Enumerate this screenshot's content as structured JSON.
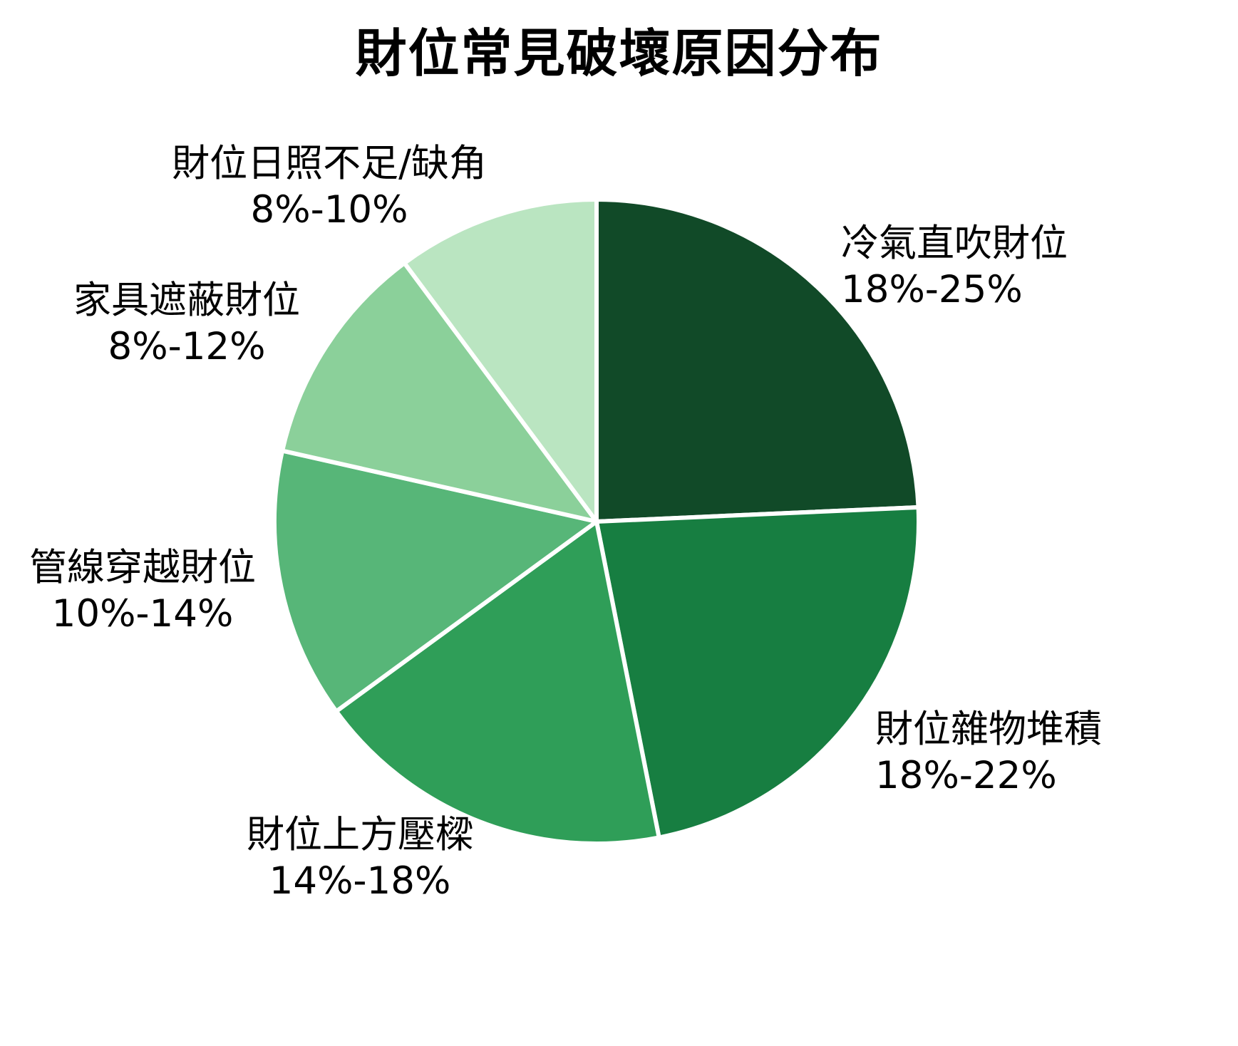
{
  "title": "財位常見破壞原因分布",
  "chart_data": {
    "type": "pie",
    "title": "財位常見破壞原因分布",
    "start_angle_deg": -90,
    "direction": "clockwise",
    "stroke_color": "#ffffff",
    "legend_position": "outside-labels",
    "slices": [
      {
        "label": "冷氣直吹財位",
        "range": "18%-25%",
        "value": 21.5,
        "color": "#114a28"
      },
      {
        "label": "財位雜物堆積",
        "range": "18%-22%",
        "value": 20,
        "color": "#177e41"
      },
      {
        "label": "財位上方壓樑",
        "range": "14%-18%",
        "value": 16,
        "color": "#2f9e58"
      },
      {
        "label": "管線穿越財位",
        "range": "10%-14%",
        "value": 12,
        "color": "#57b678"
      },
      {
        "label": "家具遮蔽財位",
        "range": "8%-12%",
        "value": 10,
        "color": "#8bd09a"
      },
      {
        "label": "財位日照不足/缺角",
        "range": "8%-10%",
        "value": 9,
        "color": "#bae5c1"
      }
    ]
  }
}
